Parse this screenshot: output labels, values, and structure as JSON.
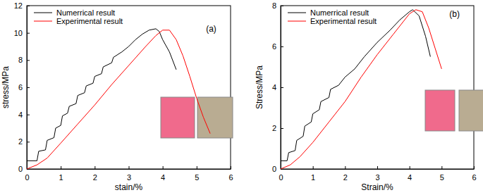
{
  "chart_data": [
    {
      "type": "line",
      "annotation": "(a)",
      "xlabel": "stain/%",
      "ylabel": "stress/MPa",
      "xlim": [
        0,
        6
      ],
      "ylim": [
        0,
        12
      ],
      "xticks": [
        0,
        1,
        2,
        3,
        4,
        5,
        6
      ],
      "yticks": [
        0,
        2,
        4,
        6,
        8,
        10,
        12
      ],
      "legend": "upper left",
      "series": [
        {
          "name": "Numerrical result",
          "color": "#000000",
          "x": [
            0,
            0.3,
            0.35,
            0.55,
            0.6,
            0.8,
            0.85,
            1.0,
            1.05,
            1.2,
            1.25,
            1.45,
            1.5,
            1.7,
            1.75,
            1.95,
            2.0,
            2.2,
            2.25,
            2.5,
            2.55,
            2.8,
            3.0,
            3.2,
            3.4,
            3.6,
            3.8,
            3.9,
            4.0,
            4.2,
            4.4
          ],
          "values": [
            0.6,
            0.6,
            1.3,
            1.4,
            2.1,
            2.3,
            3.0,
            3.2,
            3.9,
            4.1,
            4.6,
            4.8,
            5.4,
            5.6,
            6.1,
            6.3,
            6.8,
            7.0,
            7.5,
            7.8,
            8.2,
            8.6,
            9.0,
            9.5,
            9.9,
            10.2,
            10.3,
            10.1,
            9.5,
            8.6,
            7.3
          ]
        },
        {
          "name": "Experimental result",
          "color": "#ff0000",
          "x": [
            0,
            0.3,
            0.6,
            1.0,
            1.5,
            2.0,
            2.5,
            3.0,
            3.5,
            3.8,
            4.0,
            4.2,
            4.4,
            4.6,
            4.8,
            5.0,
            5.2,
            5.4
          ],
          "values": [
            0,
            0.3,
            0.8,
            1.9,
            3.3,
            4.7,
            6.2,
            7.6,
            9.0,
            9.8,
            10.2,
            10.2,
            9.5,
            8.3,
            6.8,
            5.2,
            3.8,
            2.6
          ]
        }
      ]
    },
    {
      "type": "line",
      "annotation": "(b)",
      "xlabel": "Strain/%",
      "ylabel": "Stress/MPa",
      "xlim": [
        0,
        6
      ],
      "ylim": [
        0,
        8
      ],
      "xticks": [
        0,
        1,
        2,
        3,
        4,
        5,
        6
      ],
      "yticks": [
        0,
        2,
        4,
        6,
        8
      ],
      "legend": "upper left",
      "series": [
        {
          "name": "Numerrical result",
          "color": "#000000",
          "x": [
            0,
            0.2,
            0.25,
            0.45,
            0.5,
            0.7,
            0.75,
            0.95,
            1.0,
            1.2,
            1.25,
            1.5,
            1.55,
            1.8,
            2.0,
            2.3,
            2.6,
            3.0,
            3.4,
            3.7,
            4.0,
            4.1,
            4.3,
            4.5,
            4.65
          ],
          "values": [
            0.4,
            0.4,
            0.8,
            0.9,
            1.4,
            1.6,
            2.1,
            2.3,
            2.7,
            2.9,
            3.3,
            3.5,
            3.9,
            4.1,
            4.5,
            4.9,
            5.5,
            6.2,
            6.8,
            7.3,
            7.7,
            7.8,
            7.5,
            6.5,
            5.5
          ]
        },
        {
          "name": "Experimental result",
          "color": "#ff0000",
          "x": [
            0,
            0.3,
            0.6,
            1.0,
            1.5,
            2.0,
            2.5,
            3.0,
            3.5,
            4.0,
            4.2,
            4.4,
            4.6,
            4.8,
            5.0
          ],
          "values": [
            0,
            0.2,
            0.6,
            1.3,
            2.3,
            3.3,
            4.5,
            5.6,
            6.6,
            7.6,
            7.8,
            7.7,
            6.9,
            5.9,
            4.9
          ]
        }
      ]
    }
  ]
}
